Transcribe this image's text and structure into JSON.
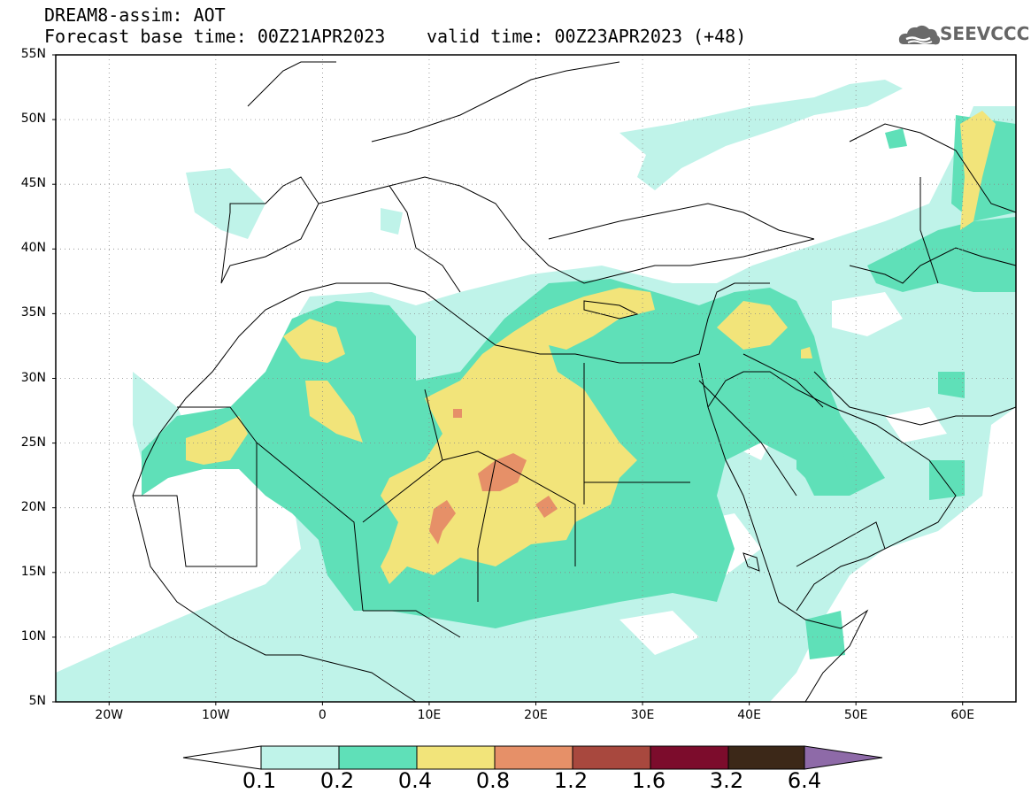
{
  "header": {
    "line1": "DREAM8-assim: AOT",
    "line2": "Forecast base time: 00Z21APR2023",
    "valid": "valid time: 00Z23APR2023 (+48)",
    "logo": "SEEVCCC"
  },
  "map": {
    "projection": "lat-lon",
    "lon_range": [
      -25,
      65
    ],
    "lat_range": [
      5,
      55
    ],
    "lat_ticks": [
      {
        "v": 55,
        "label": "55N"
      },
      {
        "v": 50,
        "label": "50N"
      },
      {
        "v": 45,
        "label": "45N"
      },
      {
        "v": 40,
        "label": "40N"
      },
      {
        "v": 35,
        "label": "35N"
      },
      {
        "v": 30,
        "label": "30N"
      },
      {
        "v": 25,
        "label": "25N"
      },
      {
        "v": 20,
        "label": "20N"
      },
      {
        "v": 15,
        "label": "15N"
      },
      {
        "v": 10,
        "label": "10N"
      },
      {
        "v": 5,
        "label": "5N"
      }
    ],
    "lon_ticks": [
      {
        "v": -20,
        "label": "20W"
      },
      {
        "v": -10,
        "label": "10W"
      },
      {
        "v": 0,
        "label": "0"
      },
      {
        "v": 10,
        "label": "10E"
      },
      {
        "v": 20,
        "label": "20E"
      },
      {
        "v": 30,
        "label": "30E"
      },
      {
        "v": 40,
        "label": "40E"
      },
      {
        "v": 50,
        "label": "50E"
      },
      {
        "v": 60,
        "label": "60E"
      }
    ],
    "grid": "dotted",
    "variable": "AOT"
  },
  "colorbar": {
    "levels": [
      "0.1",
      "0.2",
      "0.4",
      "0.8",
      "1.2",
      "1.6",
      "3.2",
      "6.4"
    ],
    "colors": [
      "#ffffff",
      "#bff3e9",
      "#5fe0b8",
      "#f2e47a",
      "#e69068",
      "#a8483e",
      "#7c0c2c",
      "#3c2818",
      "#8e6aa8"
    ]
  },
  "colors": {
    "c1": "#bff3e9",
    "c2": "#5fe0b8",
    "c3": "#f2e47a",
    "c4": "#e69068",
    "coast": "#000000"
  }
}
